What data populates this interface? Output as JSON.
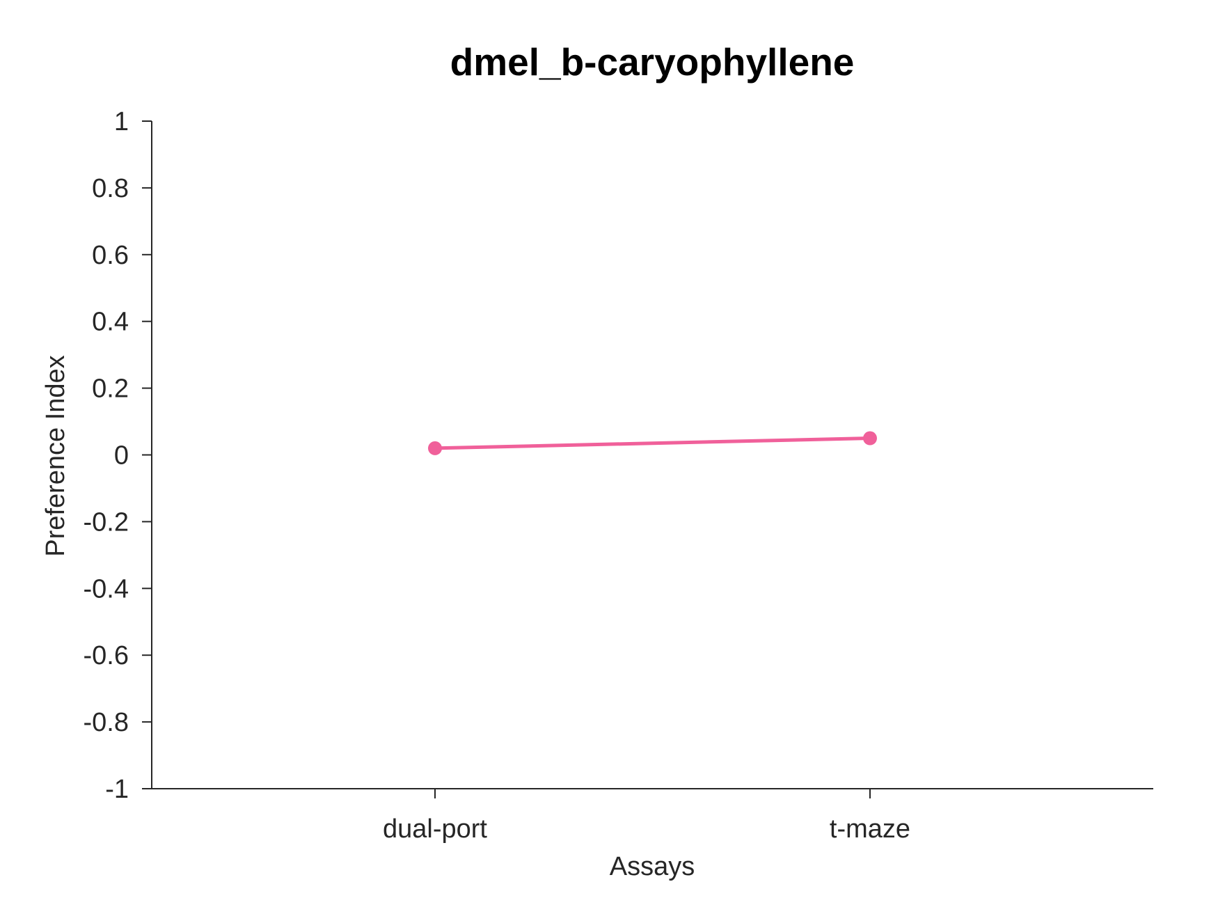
{
  "chart_data": {
    "type": "line",
    "title": "dmel_b-caryophyllene",
    "xlabel": "Assays",
    "ylabel": "Preference Index",
    "categories": [
      "dual-port",
      "t-maze"
    ],
    "yticks": [
      "1",
      "0.8",
      "0.6",
      "0.4",
      "0.2",
      "0",
      "-0.2",
      "-0.4",
      "-0.6",
      "-0.8",
      "-1"
    ],
    "ylim": [
      -1,
      1
    ],
    "grid": false,
    "legend": "none",
    "series": [
      {
        "values": [
          0.02,
          0.05
        ],
        "color": "#f0609a"
      }
    ]
  }
}
